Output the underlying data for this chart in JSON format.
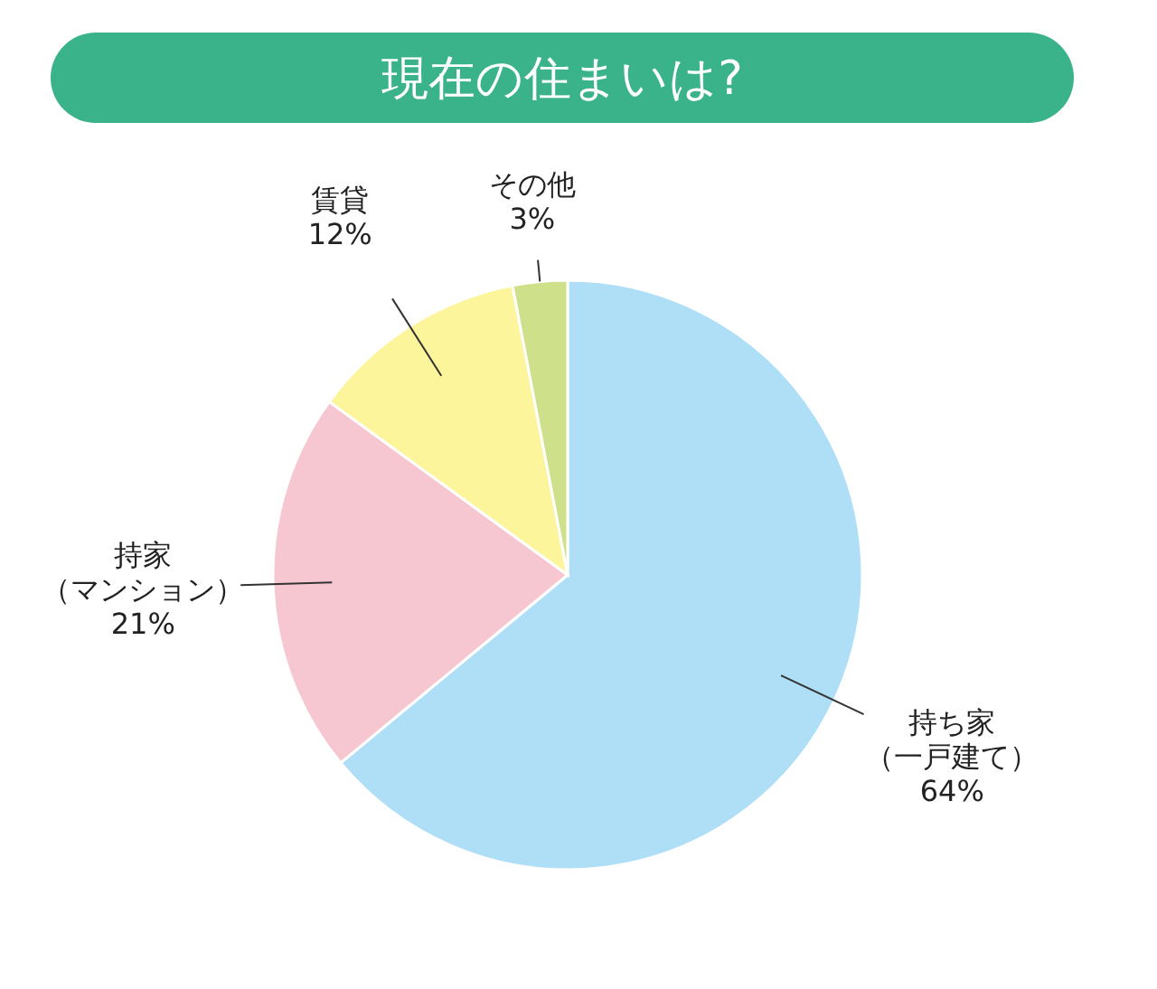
{
  "chart_data": {
    "type": "pie",
    "title": "現在の住まいは?",
    "categories": [
      "持ち家（一戸建て）",
      "持家（マンション）",
      "賃貸",
      "その他"
    ],
    "values": [
      64,
      21,
      12,
      3
    ],
    "colors": [
      "#aedff7",
      "#f6c7d0",
      "#fdf59b",
      "#cfe08b"
    ],
    "value_labels": [
      "64%",
      "21%",
      "12%",
      "3%"
    ]
  }
}
